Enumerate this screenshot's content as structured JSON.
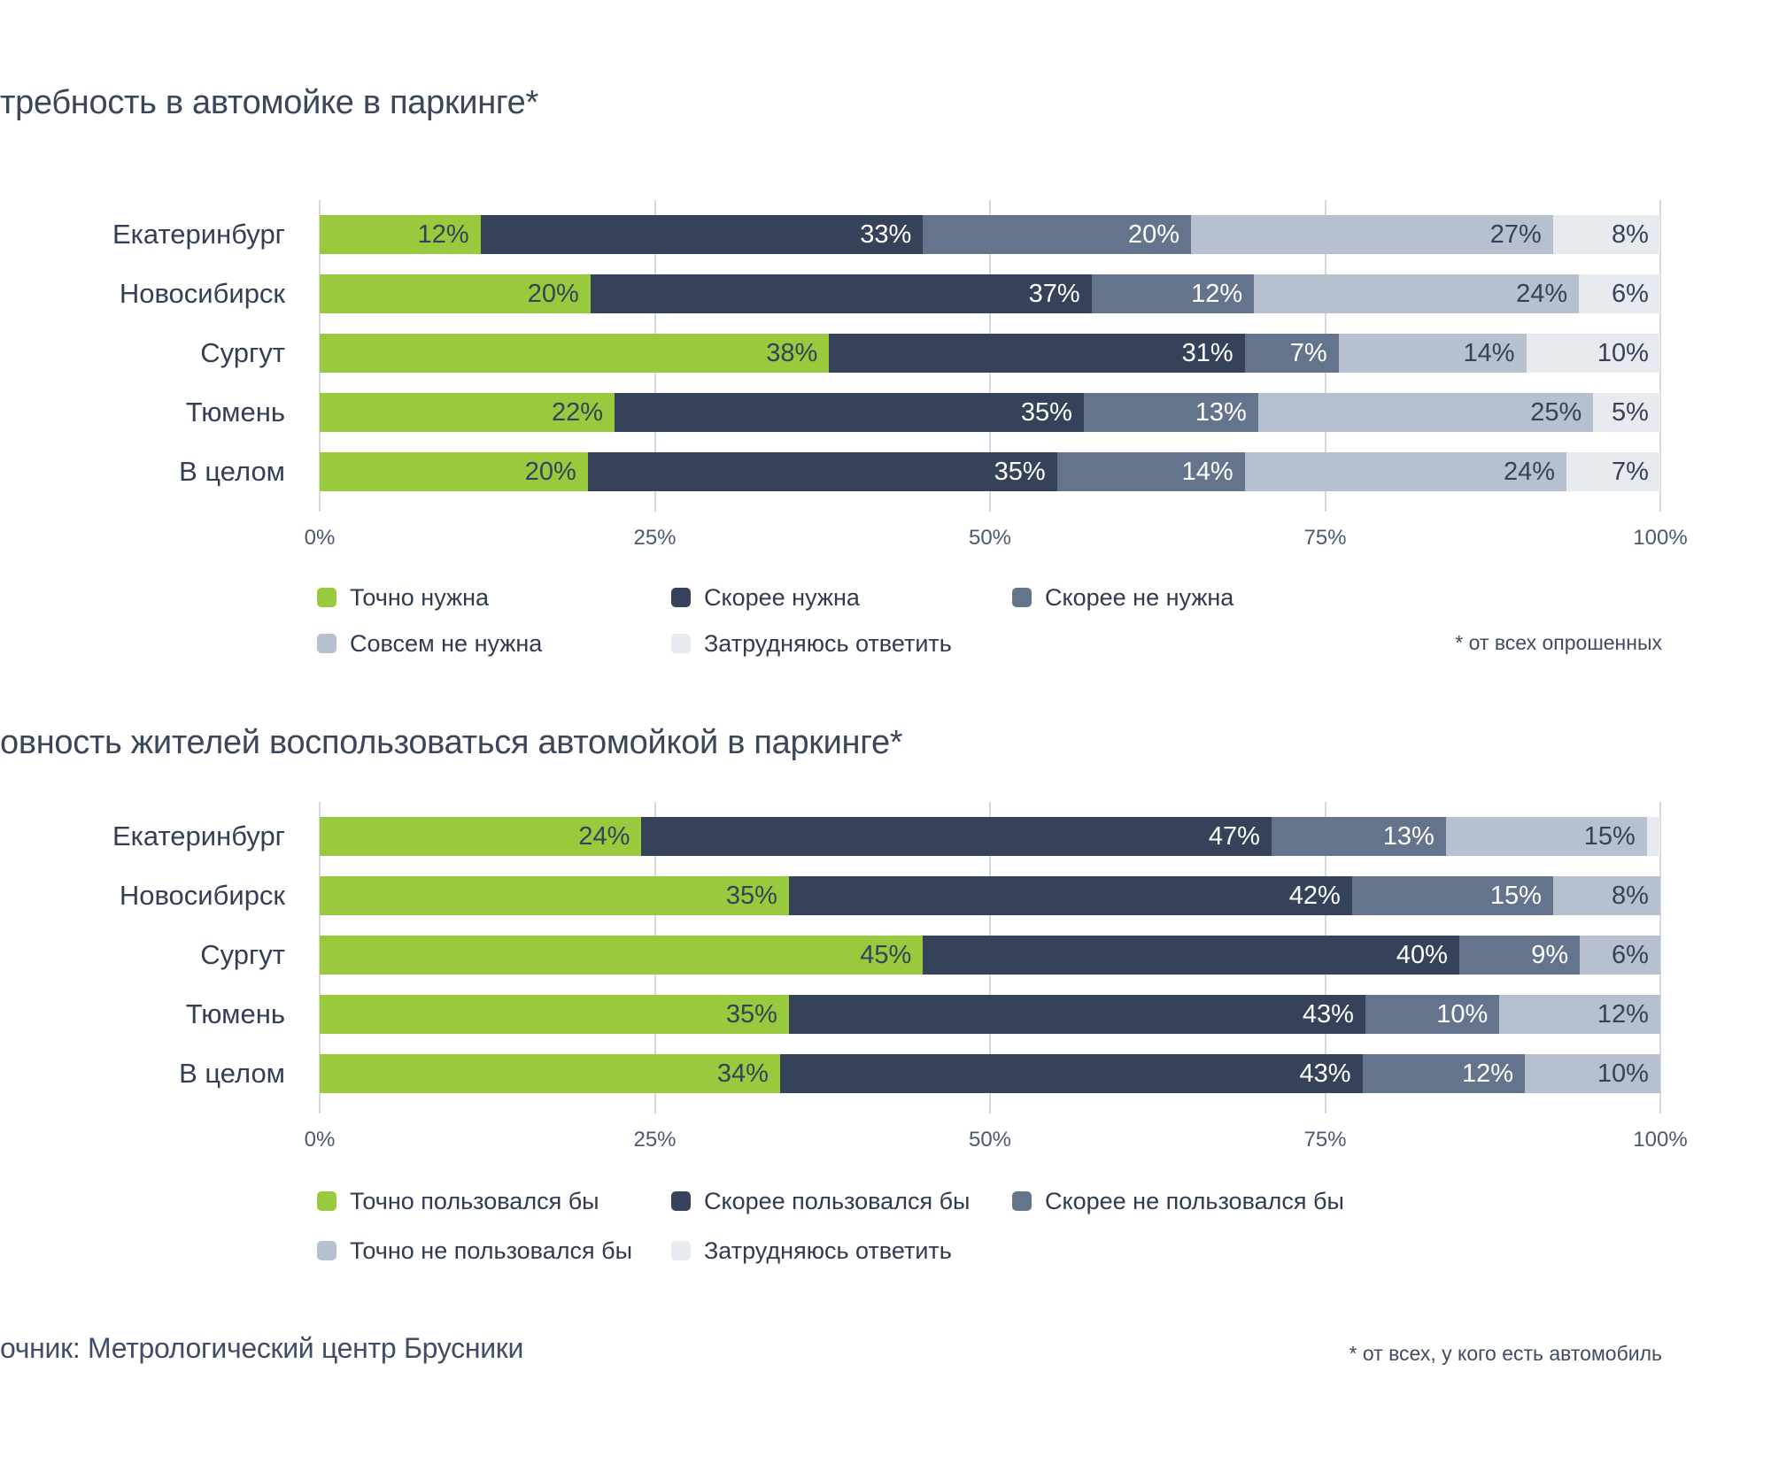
{
  "source": "очник: Метрологический центр Брусники",
  "colors": {
    "definitely_yes": "#99C93D",
    "rather_yes": "#36425A",
    "rather_no": "#64748C",
    "definitely_no": "#B6C0CE",
    "hard_to_answer": "#E7EAEF",
    "label_dark": "#36425A",
    "label_light": "#FFFFFF",
    "gridline": "#D5D9DE"
  },
  "chart_data": [
    {
      "type": "bar",
      "subtype": "horizontal-stacked",
      "title": "требность в автомойке в паркинге*",
      "categories": [
        "Екатеринбург",
        "Новосибирск",
        "Сургут",
        "Тюмень",
        "В целом"
      ],
      "series": [
        {
          "name": "Точно нужна",
          "color": "#99C93D",
          "values": [
            12,
            20,
            38,
            22,
            20
          ]
        },
        {
          "name": "Скорее нужна",
          "color": "#36425A",
          "values": [
            33,
            37,
            31,
            35,
            35
          ]
        },
        {
          "name": "Скорее не нужна",
          "color": "#64748C",
          "values": [
            20,
            12,
            7,
            13,
            14
          ]
        },
        {
          "name": "Совсем не нужна",
          "color": "#B6C0CE",
          "values": [
            27,
            24,
            14,
            25,
            24
          ]
        },
        {
          "name": "Затрудняюсь ответить",
          "color": "#E7EAEF",
          "values": [
            8,
            6,
            10,
            5,
            7
          ]
        }
      ],
      "x_ticks": [
        "0%",
        "25%",
        "50%",
        "75%",
        "100%"
      ],
      "xlim": [
        0,
        100
      ],
      "grid": true,
      "legend_position": "bottom",
      "footnote": "* от всех опрошенных"
    },
    {
      "type": "bar",
      "subtype": "horizontal-stacked",
      "title": "овность жителей воспользоваться автомойкой в паркинге*",
      "categories": [
        "Екатеринбург",
        "Новосибирск",
        "Сургут",
        "Тюмень",
        "В целом"
      ],
      "series": [
        {
          "name": "Точно пользовался бы",
          "color": "#99C93D",
          "values": [
            24,
            35,
            45,
            35,
            34
          ]
        },
        {
          "name": "Скорее пользовался бы",
          "color": "#36425A",
          "values": [
            47,
            42,
            40,
            43,
            43
          ]
        },
        {
          "name": "Скорее не пользовался бы",
          "color": "#64748C",
          "values": [
            13,
            15,
            9,
            10,
            12
          ]
        },
        {
          "name": "Точно  не пользовался бы",
          "color": "#B6C0CE",
          "values": [
            15,
            8,
            6,
            12,
            10
          ]
        },
        {
          "name": "Затрудняюсь ответить",
          "color": "#E7EAEF",
          "values": [
            1,
            0,
            0,
            0,
            0
          ]
        }
      ],
      "x_ticks": [
        "0%",
        "25%",
        "50%",
        "75%",
        "100%"
      ],
      "xlim": [
        0,
        100
      ],
      "grid": true,
      "legend_position": "bottom",
      "footnote": "* от всех, у кого есть автомобиль"
    }
  ]
}
